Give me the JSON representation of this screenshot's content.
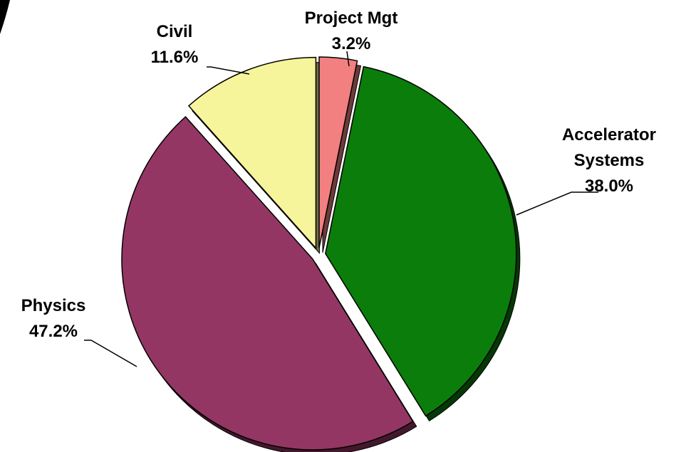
{
  "chart_data": {
    "type": "pie",
    "categories": [
      "Project Mgt",
      "Accelerator Systems",
      "Physics",
      "Civil"
    ],
    "values": [
      3.2,
      38.0,
      47.2,
      11.6
    ],
    "value_labels": [
      "3.2%",
      "38.0%",
      "47.2%",
      "11.6%"
    ],
    "colors": [
      "#f28080",
      "#0b7d0b",
      "#943663",
      "#f7f59b"
    ]
  }
}
